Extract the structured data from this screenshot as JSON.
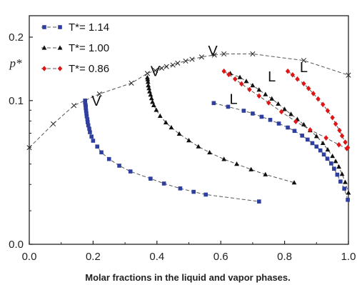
{
  "chart_data": {
    "type": "scatter",
    "title": "",
    "xlabel": "Molar fractions in the liquid and vapor phases.",
    "ylabel": "p*",
    "xlim": [
      0.0,
      1.0
    ],
    "ylim": [
      0.0,
      0.2
    ],
    "y_scale": "log",
    "x_ticks": [
      "0.0",
      "0.2",
      "0.4",
      "0.6",
      "0.8",
      "1.0"
    ],
    "y_ticks": [
      "0.0",
      "0.1",
      "0.2"
    ],
    "legend_position": "top-left",
    "envelope": {
      "marker": "x",
      "points": [
        [
          0.0,
          0.0598
        ],
        [
          0.075,
          0.0775
        ],
        [
          0.14,
          0.0948
        ],
        [
          0.22,
          0.1075
        ],
        [
          0.32,
          0.121
        ],
        [
          0.37,
          0.1345
        ],
        [
          0.395,
          0.139
        ],
        [
          0.415,
          0.1425
        ],
        [
          0.43,
          0.145
        ],
        [
          0.45,
          0.1475
        ],
        [
          0.465,
          0.1505
        ],
        [
          0.49,
          0.154
        ],
        [
          0.51,
          0.157
        ],
        [
          0.54,
          0.161
        ],
        [
          0.58,
          0.1645
        ],
        [
          0.61,
          0.1665
        ],
        [
          0.7,
          0.1665
        ],
        [
          0.86,
          0.155
        ],
        [
          1.0,
          0.132
        ]
      ]
    },
    "series": [
      {
        "name": "T*= 1.14",
        "color": "#2f3f9f",
        "marker": "square",
        "vapor": [
          [
            0.175,
            0.1
          ],
          [
            0.175,
            0.098
          ],
          [
            0.176,
            0.0955
          ],
          [
            0.177,
            0.094
          ],
          [
            0.177,
            0.092
          ],
          [
            0.178,
            0.0895
          ],
          [
            0.179,
            0.087
          ],
          [
            0.18,
            0.0842
          ],
          [
            0.182,
            0.0815
          ],
          [
            0.183,
            0.079
          ],
          [
            0.185,
            0.0763
          ],
          [
            0.188,
            0.0735
          ],
          [
            0.19,
            0.0708
          ],
          [
            0.195,
            0.0675
          ],
          [
            0.2,
            0.0645
          ],
          [
            0.213,
            0.0605
          ],
          [
            0.226,
            0.0568
          ],
          [
            0.25,
            0.0528
          ],
          [
            0.282,
            0.0491
          ],
          [
            0.317,
            0.0461
          ],
          [
            0.38,
            0.0426
          ],
          [
            0.422,
            0.0404
          ],
          [
            0.473,
            0.0383
          ],
          [
            0.515,
            0.0369
          ],
          [
            0.553,
            0.0358
          ],
          [
            0.72,
            0.0332
          ]
        ],
        "liquid": [
          [
            0.578,
            0.0973
          ],
          [
            0.623,
            0.0935
          ],
          [
            0.672,
            0.0895
          ],
          [
            0.7,
            0.0868
          ],
          [
            0.728,
            0.0838
          ],
          [
            0.755,
            0.081
          ],
          [
            0.782,
            0.0778
          ],
          [
            0.81,
            0.0745
          ],
          [
            0.831,
            0.0718
          ],
          [
            0.855,
            0.0682
          ],
          [
            0.872,
            0.0653
          ],
          [
            0.887,
            0.0628
          ],
          [
            0.9,
            0.0605
          ],
          [
            0.912,
            0.058
          ],
          [
            0.923,
            0.0555
          ],
          [
            0.934,
            0.053
          ],
          [
            0.946,
            0.0503
          ],
          [
            0.955,
            0.0475
          ],
          [
            0.965,
            0.0445
          ],
          [
            0.975,
            0.0413
          ],
          [
            0.987,
            0.0382
          ],
          [
            0.998,
            0.0338
          ]
        ]
      },
      {
        "name": "T*= 1.00",
        "color": "#111111",
        "marker": "triangle",
        "vapor": [
          [
            0.37,
            0.1287
          ],
          [
            0.371,
            0.126
          ],
          [
            0.372,
            0.1225
          ],
          [
            0.373,
            0.118
          ],
          [
            0.375,
            0.1143
          ],
          [
            0.377,
            0.1104
          ],
          [
            0.38,
            0.1066
          ],
          [
            0.383,
            0.1025
          ],
          [
            0.386,
            0.0985
          ],
          [
            0.39,
            0.095
          ],
          [
            0.398,
            0.0902
          ],
          [
            0.41,
            0.0845
          ],
          [
            0.428,
            0.0787
          ],
          [
            0.445,
            0.0745
          ],
          [
            0.47,
            0.0695
          ],
          [
            0.5,
            0.0647
          ],
          [
            0.53,
            0.0605
          ],
          [
            0.565,
            0.0567
          ],
          [
            0.61,
            0.0527
          ],
          [
            0.65,
            0.05
          ],
          [
            0.695,
            0.0471
          ],
          [
            0.74,
            0.0446
          ],
          [
            0.83,
            0.0408
          ]
        ],
        "liquid": [
          [
            0.63,
            0.1345
          ],
          [
            0.66,
            0.129
          ],
          [
            0.68,
            0.1235
          ],
          [
            0.7,
            0.118
          ],
          [
            0.72,
            0.1125
          ],
          [
            0.74,
            0.107
          ],
          [
            0.76,
            0.102
          ],
          [
            0.78,
            0.0965
          ],
          [
            0.8,
            0.091
          ],
          [
            0.82,
            0.0862
          ],
          [
            0.84,
            0.0815
          ],
          [
            0.86,
            0.077
          ],
          [
            0.88,
            0.0722
          ],
          [
            0.9,
            0.0677
          ],
          [
            0.92,
            0.0628
          ],
          [
            0.935,
            0.0585
          ],
          [
            0.95,
            0.0545
          ],
          [
            0.96,
            0.0515
          ],
          [
            0.97,
            0.0485
          ],
          [
            0.98,
            0.0448
          ],
          [
            0.99,
            0.041
          ],
          [
            1.0,
            0.0365
          ]
        ]
      },
      {
        "name": "T*= 0.86",
        "color": "#e01515",
        "marker": "diamond",
        "vapor": [
          [
            0.61,
            0.1378
          ],
          [
            0.625,
            0.133
          ],
          [
            0.645,
            0.1265
          ],
          [
            0.665,
            0.12
          ],
          [
            0.69,
            0.1128
          ],
          [
            0.72,
            0.1052
          ],
          [
            0.75,
            0.0976
          ],
          [
            0.79,
            0.0885
          ],
          [
            0.835,
            0.0795
          ],
          [
            0.88,
            0.0726
          ],
          [
            0.93,
            0.0665
          ],
          [
            0.97,
            0.0617
          ],
          [
            0.995,
            0.0592
          ]
        ],
        "liquid": [
          [
            0.81,
            0.1378
          ],
          [
            0.825,
            0.1325
          ],
          [
            0.84,
            0.1265
          ],
          [
            0.86,
            0.1203
          ],
          [
            0.875,
            0.1142
          ],
          [
            0.89,
            0.108
          ],
          [
            0.905,
            0.1018
          ],
          [
            0.92,
            0.0958
          ],
          [
            0.935,
            0.0895
          ],
          [
            0.95,
            0.083
          ],
          [
            0.96,
            0.0775
          ],
          [
            0.972,
            0.0722
          ],
          [
            0.98,
            0.068
          ],
          [
            0.99,
            0.0635
          ],
          [
            0.998,
            0.0598
          ]
        ]
      }
    ],
    "annotations": [
      {
        "text": "V",
        "x": 0.21,
        "y": 0.0945
      },
      {
        "text": "V",
        "x": 0.395,
        "y": 0.1305
      },
      {
        "text": "V",
        "x": 0.575,
        "y": 0.163
      },
      {
        "text": "L",
        "x": 0.64,
        "y": 0.0965
      },
      {
        "text": "L",
        "x": 0.76,
        "y": 0.1235
      },
      {
        "text": "L",
        "x": 0.86,
        "y": 0.1365
      }
    ]
  }
}
